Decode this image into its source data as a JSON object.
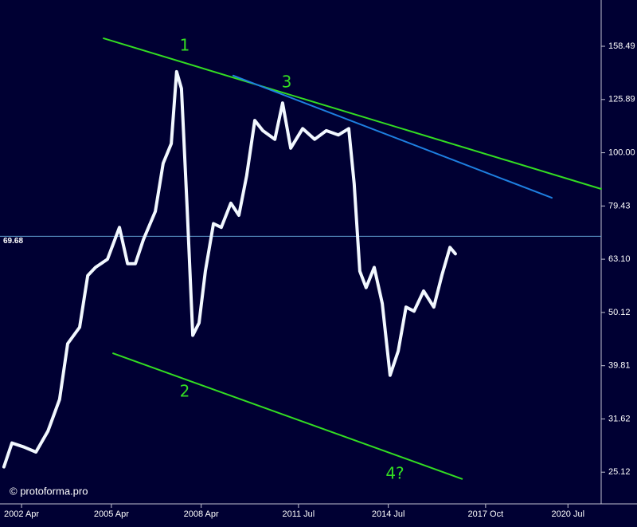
{
  "chart_data": {
    "type": "line",
    "log_scale_y": true,
    "background": "#000033",
    "xlim": [
      2001.53,
      2021.61
    ],
    "ylim": [
      21.9,
      193.6
    ],
    "xticks": [
      {
        "value": 2002.25,
        "label": "2002 Apr"
      },
      {
        "value": 2005.25,
        "label": "2005 Apr"
      },
      {
        "value": 2008.25,
        "label": "2008 Apr"
      },
      {
        "value": 2011.5,
        "label": "2011 Jul"
      },
      {
        "value": 2014.5,
        "label": "2014 Jul"
      },
      {
        "value": 2017.75,
        "label": "2017 Oct"
      },
      {
        "value": 2020.5,
        "label": "2020 Jul"
      }
    ],
    "yticks": [
      25.12,
      31.62,
      39.81,
      50.12,
      {
        "value": 63.1,
        "label": "63.10"
      },
      79.43,
      {
        "value": 100,
        "label": "100.00"
      },
      125.89,
      158.49
    ],
    "price_line": {
      "value": 69.68,
      "color": "#5f9fd0"
    },
    "series": [
      {
        "color": "#f2f8ff",
        "x": [
          2001.66,
          2001.93,
          2002.33,
          2002.73,
          2003.13,
          2003.52,
          2003.79,
          2004.19,
          2004.46,
          2004.72,
          2005.12,
          2005.52,
          2005.79,
          2006.05,
          2006.32,
          2006.72,
          2006.98,
          2007.25,
          2007.43,
          2007.59,
          2007.78,
          2007.97,
          2008.18,
          2008.39,
          2008.66,
          2008.92,
          2009.24,
          2009.51,
          2009.77,
          2010.04,
          2010.31,
          2010.71,
          2010.97,
          2011.24,
          2011.64,
          2012.04,
          2012.43,
          2012.83,
          2013.18,
          2013.36,
          2013.55,
          2013.76,
          2014.03,
          2014.3,
          2014.56,
          2014.83,
          2015.09,
          2015.36,
          2015.68,
          2016.02,
          2016.29,
          2016.56,
          2016.74
        ],
        "values": [
          25.7,
          28.5,
          28.0,
          27.4,
          30.0,
          34.4,
          43.8,
          47.0,
          58.8,
          60.9,
          63.1,
          72.4,
          61.9,
          61.9,
          68.7,
          77.6,
          95.5,
          104,
          142,
          132,
          78.9,
          45.4,
          47.9,
          59.9,
          73.6,
          72.4,
          80.4,
          76.3,
          90.6,
          115,
          110,
          106,
          124,
          102,
          111,
          106,
          110,
          108,
          111,
          87.5,
          59.9,
          55.8,
          60.9,
          52.1,
          38.2,
          42.4,
          51.3,
          50.4,
          55.0,
          51.3,
          58.9,
          66.4,
          64.6
        ]
      },
      {
        "color": "#33dd22",
        "x": [
          2004.99,
          2021.61
        ],
        "values": [
          164,
          85.5
        ]
      },
      {
        "color": "#1e7fe0",
        "x": [
          2009.32,
          2019.96
        ],
        "values": [
          139.6,
          82.3
        ]
      },
      {
        "color": "#33dd22",
        "x": [
          2005.31,
          2016.96
        ],
        "values": [
          42.0,
          24.4
        ]
      }
    ],
    "annotations": [
      "1",
      "2",
      "3",
      "4?"
    ],
    "watermark": "© protoforma.pro"
  }
}
